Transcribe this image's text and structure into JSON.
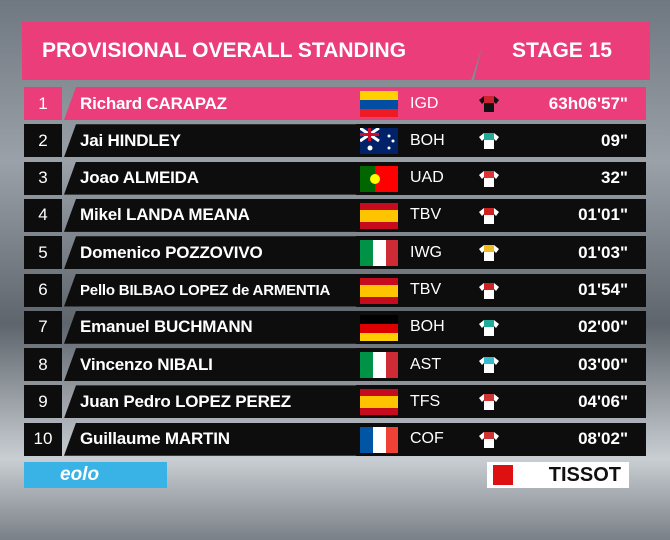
{
  "header": {
    "title": "PROVISIONAL OVERALL STANDING",
    "stage": "STAGE 15"
  },
  "rows": [
    {
      "rank": "1",
      "name": "Richard CARAPAZ",
      "team": "IGD",
      "time": "63h06'57\""
    },
    {
      "rank": "2",
      "name": "Jai HINDLEY",
      "team": "BOH",
      "time": "09\""
    },
    {
      "rank": "3",
      "name": "Joao ALMEIDA",
      "team": "UAD",
      "time": "32\""
    },
    {
      "rank": "4",
      "name": "Mikel LANDA MEANA",
      "team": "TBV",
      "time": "01'01\""
    },
    {
      "rank": "5",
      "name": "Domenico POZZOVIVO",
      "team": "IWG",
      "time": "01'03\""
    },
    {
      "rank": "6",
      "name": "Pello BILBAO LOPEZ de ARMENTIA",
      "team": "TBV",
      "time": "01'54\""
    },
    {
      "rank": "7",
      "name": "Emanuel BUCHMANN",
      "team": "BOH",
      "time": "02'00\""
    },
    {
      "rank": "8",
      "name": "Vincenzo NIBALI",
      "team": "AST",
      "time": "03'00\""
    },
    {
      "rank": "9",
      "name": "Juan Pedro LOPEZ PEREZ",
      "team": "TFS",
      "time": "04'06\""
    },
    {
      "rank": "10",
      "name": "Guillaume MARTIN",
      "team": "COF",
      "time": "08'02\""
    }
  ],
  "sponsors": {
    "left": "eolo",
    "right": "TISSOT"
  }
}
